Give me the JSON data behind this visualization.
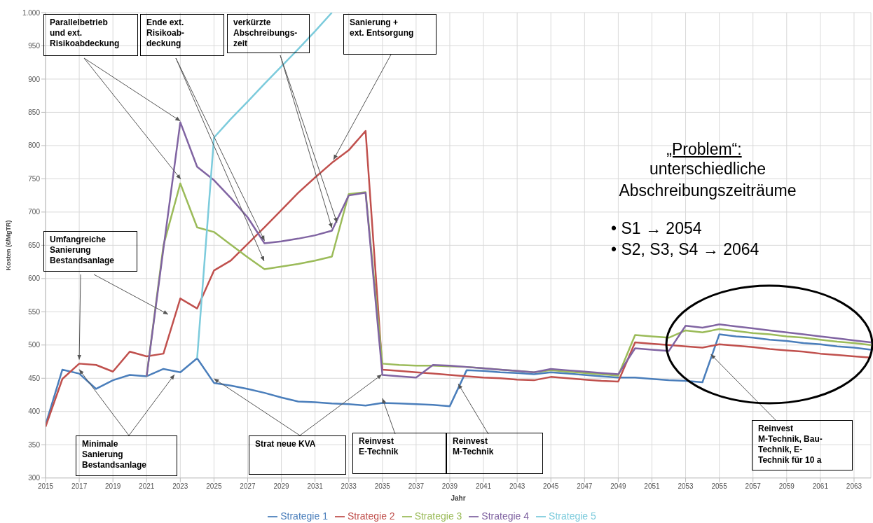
{
  "chart_data": {
    "type": "line",
    "xlabel": "Jahr",
    "ylabel": "Kosten (€/MgTR)",
    "x": [
      2015,
      2016,
      2017,
      2018,
      2019,
      2020,
      2021,
      2022,
      2023,
      2024,
      2025,
      2026,
      2027,
      2028,
      2029,
      2030,
      2031,
      2032,
      2033,
      2034,
      2035,
      2036,
      2037,
      2038,
      2039,
      2040,
      2041,
      2042,
      2043,
      2044,
      2045,
      2046,
      2047,
      2048,
      2049,
      2050,
      2051,
      2052,
      2053,
      2054,
      2055,
      2056,
      2057,
      2058,
      2059,
      2060,
      2061,
      2062,
      2063,
      2064
    ],
    "series": [
      {
        "name": "Strategie 1",
        "color": "#4a7ebb",
        "values": [
          380,
          463,
          457,
          434,
          447,
          455,
          453,
          464,
          459,
          480,
          443,
          439,
          434,
          428,
          421,
          415,
          414,
          412,
          411,
          409,
          413,
          412,
          411,
          410,
          408,
          462,
          461,
          459,
          458,
          456,
          459,
          457,
          455,
          453,
          451,
          451,
          449,
          447,
          446,
          444,
          516,
          513,
          511,
          508,
          506,
          503,
          501,
          498,
          496,
          493
        ]
      },
      {
        "name": "Strategie 2",
        "color": "#c0504d",
        "values": [
          377,
          449,
          472,
          470,
          460,
          490,
          483,
          487,
          570,
          555,
          612,
          627,
          652,
          677,
          703,
          729,
          752,
          774,
          793,
          822,
          463,
          461,
          459,
          457,
          455,
          453,
          451,
          450,
          448,
          447,
          452,
          450,
          448,
          446,
          445,
          504,
          502,
          500,
          498,
          496,
          501,
          499,
          497,
          494,
          492,
          490,
          487,
          485,
          483,
          481
        ]
      },
      {
        "name": "Strategie 3",
        "color": "#9bbb59",
        "values": [
          null,
          null,
          null,
          null,
          null,
          null,
          453,
          650,
          743,
          677,
          670,
          651,
          632,
          614,
          618,
          622,
          627,
          633,
          727,
          730,
          472,
          470,
          469,
          469,
          468,
          467,
          465,
          463,
          461,
          459,
          462,
          460,
          458,
          456,
          454,
          515,
          513,
          511,
          522,
          519,
          524,
          521,
          518,
          516,
          513,
          511,
          508,
          505,
          503,
          500
        ]
      },
      {
        "name": "Strategie 4",
        "color": "#8064a2",
        "values": [
          null,
          null,
          null,
          null,
          null,
          null,
          453,
          645,
          835,
          768,
          748,
          721,
          692,
          653,
          656,
          660,
          665,
          672,
          725,
          729,
          455,
          453,
          451,
          470,
          469,
          467,
          465,
          463,
          461,
          459,
          464,
          462,
          460,
          458,
          456,
          495,
          493,
          491,
          529,
          526,
          531,
          528,
          525,
          522,
          519,
          516,
          513,
          510,
          507,
          504
        ]
      },
      {
        "name": "Strategie 5",
        "color": "#7ccbdc",
        "values": [
          null,
          null,
          null,
          null,
          null,
          null,
          null,
          null,
          null,
          480,
          812,
          840,
          866,
          893,
          919,
          945,
          972,
          1000,
          null,
          null,
          null,
          null,
          null,
          null,
          null,
          null,
          null,
          null,
          null,
          null,
          null,
          null,
          null,
          null,
          null,
          null,
          null,
          null,
          null,
          null,
          null,
          null,
          null,
          null,
          null,
          null,
          null,
          null,
          null,
          null
        ]
      }
    ],
    "xlim": [
      2015,
      2064
    ],
    "xticks": [
      2015,
      2017,
      2019,
      2021,
      2023,
      2025,
      2027,
      2029,
      2031,
      2033,
      2035,
      2037,
      2039,
      2041,
      2043,
      2045,
      2047,
      2049,
      2051,
      2053,
      2055,
      2057,
      2059,
      2061,
      2063
    ],
    "ylim": [
      300,
      1000
    ],
    "yticks": [
      300,
      350,
      400,
      450,
      500,
      550,
      600,
      650,
      700,
      750,
      800,
      850,
      900,
      950,
      {
        "value": 1000,
        "label": "1.000"
      }
    ],
    "grid": true,
    "legend": "bottom",
    "marker": "none",
    "line_style": "solid",
    "annotations": [
      {
        "text": "Parallelbetrieb\nund ext.\nRisikoabdeckung",
        "x": 2023,
        "y": 835
      },
      {
        "text": "Ende ext.\nRisikoab-\ndeckung",
        "x": 2028,
        "y": 653
      },
      {
        "text": "verkürzte\nAbschreibungs-\nzeit",
        "x": 2032,
        "y": 672
      },
      "Sanierung +\next. Entsorgung",
      {
        "text": "Umfangreiche\nSanierung\nBestandsanlage",
        "x": 2017,
        "y": 472
      },
      {
        "text": "Minimale\nSanierung\nBestandsanlage",
        "x": 2017,
        "y": 457
      },
      {
        "text": "Strat neue KVA",
        "x": 2025,
        "y": 443
      },
      {
        "text": "Reinvest\nE-Technik",
        "x": 2035,
        "y": 413
      },
      {
        "text": "Reinvest\nM-Technik",
        "x": 2039.5,
        "y": 435
      },
      {
        "text": "Reinvest\nM-Technik, Bau-\nTechnik, E-\nTechnik für 10 a",
        "x": 2054.5,
        "y": 480
      },
      "„Problem“:",
      "unterschiedliche\nAbschreibungszeiträume",
      "• S1 → 2054",
      "• S2, S3, S4 → 2064"
    ]
  }
}
